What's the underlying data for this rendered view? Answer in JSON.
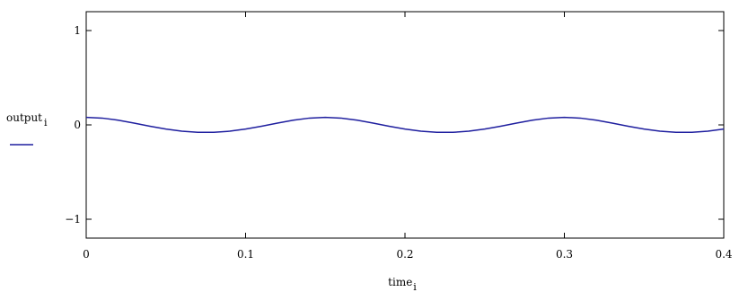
{
  "chart_data": {
    "type": "line",
    "xlabel": "time",
    "xlabel_sub": "i",
    "ylabel": "output",
    "ylabel_sub": "i",
    "xlim": [
      0,
      0.4
    ],
    "ylim": [
      -1.2,
      1.2
    ],
    "xticks": [
      0,
      0.1,
      0.2,
      0.3,
      0.4
    ],
    "yticks": [
      -1,
      0,
      1
    ],
    "grid": false,
    "legend": "left",
    "series": [
      {
        "color": "#1f1f9f",
        "x": [
          0,
          0.01,
          0.02,
          0.03,
          0.04,
          0.05,
          0.06,
          0.07,
          0.08,
          0.09,
          0.1,
          0.11,
          0.12,
          0.13,
          0.14,
          0.15,
          0.16,
          0.17,
          0.18,
          0.19,
          0.2,
          0.21,
          0.22,
          0.23,
          0.24,
          0.25,
          0.26,
          0.27,
          0.28,
          0.29,
          0.3,
          0.31,
          0.32,
          0.33,
          0.34,
          0.35,
          0.36,
          0.37,
          0.38,
          0.39,
          0.4
        ],
        "y": [
          0.08,
          0.072,
          0.05,
          0.019,
          -0.014,
          -0.044,
          -0.067,
          -0.079,
          -0.079,
          -0.067,
          -0.044,
          -0.014,
          0.019,
          0.05,
          0.072,
          0.08,
          0.072,
          0.05,
          0.019,
          -0.014,
          -0.044,
          -0.067,
          -0.079,
          -0.079,
          -0.067,
          -0.044,
          -0.014,
          0.019,
          0.05,
          0.072,
          0.08,
          0.072,
          0.05,
          0.019,
          -0.014,
          -0.044,
          -0.067,
          -0.079,
          -0.079,
          -0.067,
          -0.044
        ]
      }
    ]
  }
}
